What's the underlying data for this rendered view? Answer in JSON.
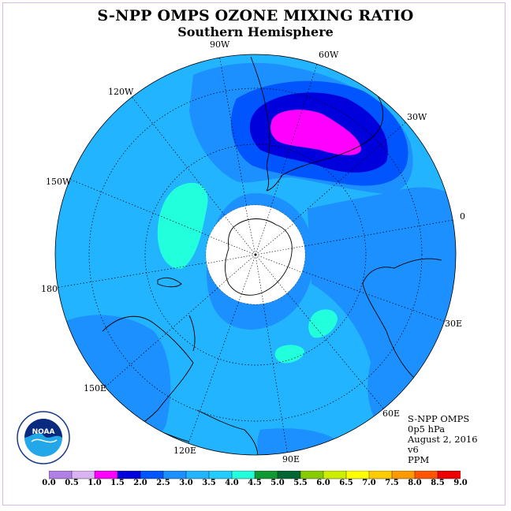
{
  "title": "S-NPP OMPS OZONE MIXING RATIO",
  "subtitle": "Southern Hemisphere",
  "info": {
    "line1": "S-NPP OMPS",
    "line2": "0p5 hPa",
    "line3": "August 2, 2016",
    "line4": "v6",
    "line5": "PPM"
  },
  "longitude_labels": {
    "w90": "90W",
    "w60": "60W",
    "w30": "30W",
    "e0": "0",
    "e30": "30E",
    "e60": "60E",
    "e90": "90E",
    "e120": "120E",
    "e150": "150E",
    "d180": "180",
    "w150": "150W",
    "w120": "120W"
  },
  "logo_text": "NOAA",
  "colorbar": {
    "ticks": [
      "0.0",
      "0.5",
      "1.0",
      "1.5",
      "2.0",
      "2.5",
      "3.0",
      "3.5",
      "4.0",
      "4.5",
      "5.0",
      "5.5",
      "6.0",
      "6.5",
      "7.0",
      "7.5",
      "8.0",
      "8.5",
      "9.0"
    ],
    "colors": [
      "#b27fe6",
      "#d9b3f2",
      "#ff00ff",
      "#0000dd",
      "#0055ff",
      "#1c90ff",
      "#22b4ff",
      "#22ccff",
      "#22ffdd",
      "#119933",
      "#006633",
      "#88cc00",
      "#ccee00",
      "#ffff00",
      "#ffcc00",
      "#ff9900",
      "#ff5500",
      "#ee0000",
      "#885533"
    ]
  },
  "colors": {
    "background_field": "#22b4ff",
    "low": "#1c90ff",
    "high": "#22ffdd",
    "max_core": "#ff00ff",
    "ring": "#0000dd",
    "mid": "#0055ff"
  }
}
